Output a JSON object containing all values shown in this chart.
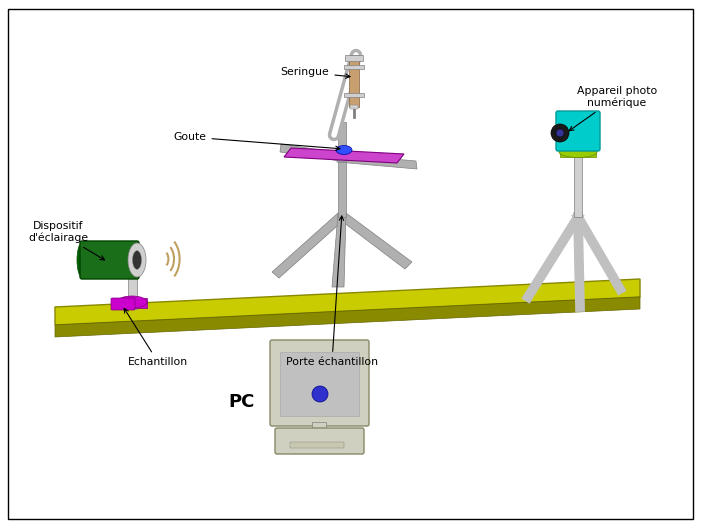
{
  "title": "",
  "bg_color": "#ffffff",
  "border_color": "#000000",
  "labels": {
    "dispositif": "Dispositif\nd'éclairage",
    "goute": "Goute",
    "seringue": "Seringue",
    "echantillon": "Echantillon",
    "porte": "Porte échantillon",
    "appareil": "Appareil photo\nnumérique",
    "pc": "PC"
  },
  "colors": {
    "table": "#c8cc00",
    "table_side": "#8a8a00",
    "lamp_body": "#1a6e1a",
    "lamp_front": "#d0d0d0",
    "lamp_post": "#d0d0d0",
    "lamp_base": "#cc00cc",
    "sample": "#cc00cc",
    "arm_color": "#b0b0b0",
    "syringe_body": "#c8a070",
    "syringe_top": "#d0d0d0",
    "drop": "#3050ff",
    "camera_body": "#00cccc",
    "camera_base": "#99cc00",
    "camera_post": "#d0d0d0",
    "camera_tripod": "#c0c0c0",
    "pc_monitor": "#d0d0c0",
    "pc_screen": "#c0c0c0",
    "pc_unit": "#d0d0c0",
    "pc_disk": "#3030cc",
    "wave_color": "#c0a060",
    "annotation_color": "#000000",
    "plate_color": "#cc44cc"
  }
}
